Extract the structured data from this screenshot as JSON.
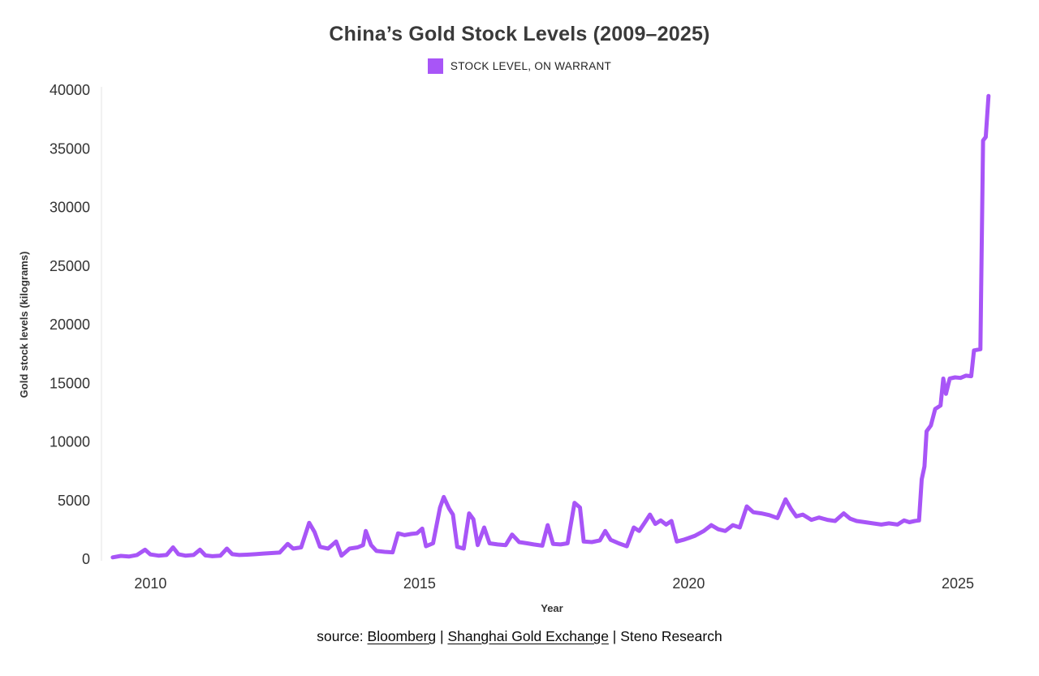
{
  "header": {
    "title": "China’s Gold Stock Levels (2009–2025)"
  },
  "legend": {
    "label": "STOCK LEVEL, ON WARRANT"
  },
  "source": {
    "prefix": "source: ",
    "link_bloomberg": "Bloomberg",
    "sep1": " | ",
    "link_sge": "Shanghai Gold Exchange",
    "sep2": " | ",
    "credit": "Steno Research"
  },
  "chart_data": {
    "type": "line",
    "title": "China’s Gold Stock Levels (2009–2025)",
    "xlabel": "Year",
    "ylabel": "Gold stock levels (kilograms)",
    "unit": "kilograms",
    "legend_position": "top",
    "grid": false,
    "color": "#a855f7",
    "xlim": [
      2009.09,
      2025.83
    ],
    "ylim": [
      0,
      40000
    ],
    "x_ticks": [
      2010,
      2015,
      2020,
      2025
    ],
    "y_ticks": [
      0,
      5000,
      10000,
      15000,
      20000,
      25000,
      30000,
      35000,
      40000
    ],
    "series": [
      {
        "name": "STOCK LEVEL, ON WARRANT",
        "points": [
          [
            2009.3,
            150
          ],
          [
            2009.45,
            280
          ],
          [
            2009.6,
            220
          ],
          [
            2009.75,
            350
          ],
          [
            2009.9,
            800
          ],
          [
            2010.0,
            400
          ],
          [
            2010.15,
            300
          ],
          [
            2010.3,
            350
          ],
          [
            2010.42,
            1000
          ],
          [
            2010.52,
            420
          ],
          [
            2010.65,
            300
          ],
          [
            2010.8,
            350
          ],
          [
            2010.92,
            800
          ],
          [
            2011.02,
            320
          ],
          [
            2011.15,
            250
          ],
          [
            2011.3,
            300
          ],
          [
            2011.42,
            900
          ],
          [
            2011.52,
            420
          ],
          [
            2011.65,
            350
          ],
          [
            2011.8,
            380
          ],
          [
            2011.95,
            420
          ],
          [
            2012.1,
            480
          ],
          [
            2012.25,
            520
          ],
          [
            2012.4,
            560
          ],
          [
            2012.55,
            1300
          ],
          [
            2012.65,
            900
          ],
          [
            2012.8,
            1000
          ],
          [
            2012.95,
            3100
          ],
          [
            2013.05,
            2300
          ],
          [
            2013.15,
            1050
          ],
          [
            2013.3,
            900
          ],
          [
            2013.45,
            1500
          ],
          [
            2013.55,
            300
          ],
          [
            2013.7,
            900
          ],
          [
            2013.85,
            1000
          ],
          [
            2013.95,
            1200
          ],
          [
            2014.0,
            2400
          ],
          [
            2014.1,
            1200
          ],
          [
            2014.2,
            700
          ],
          [
            2014.35,
            620
          ],
          [
            2014.5,
            580
          ],
          [
            2014.6,
            2200
          ],
          [
            2014.72,
            2050
          ],
          [
            2014.85,
            2150
          ],
          [
            2014.95,
            2200
          ],
          [
            2015.05,
            2600
          ],
          [
            2015.12,
            1100
          ],
          [
            2015.25,
            1350
          ],
          [
            2015.38,
            4400
          ],
          [
            2015.45,
            5300
          ],
          [
            2015.55,
            4300
          ],
          [
            2015.62,
            3800
          ],
          [
            2015.7,
            1050
          ],
          [
            2015.82,
            900
          ],
          [
            2015.92,
            3900
          ],
          [
            2016.0,
            3400
          ],
          [
            2016.08,
            1200
          ],
          [
            2016.2,
            2700
          ],
          [
            2016.3,
            1350
          ],
          [
            2016.45,
            1250
          ],
          [
            2016.6,
            1200
          ],
          [
            2016.72,
            2100
          ],
          [
            2016.85,
            1450
          ],
          [
            2017.0,
            1350
          ],
          [
            2017.12,
            1250
          ],
          [
            2017.28,
            1150
          ],
          [
            2017.38,
            2900
          ],
          [
            2017.48,
            1300
          ],
          [
            2017.62,
            1250
          ],
          [
            2017.75,
            1350
          ],
          [
            2017.88,
            4800
          ],
          [
            2017.98,
            4400
          ],
          [
            2018.05,
            1500
          ],
          [
            2018.2,
            1450
          ],
          [
            2018.35,
            1600
          ],
          [
            2018.45,
            2400
          ],
          [
            2018.55,
            1650
          ],
          [
            2018.7,
            1350
          ],
          [
            2018.85,
            1100
          ],
          [
            2018.98,
            2700
          ],
          [
            2019.08,
            2400
          ],
          [
            2019.18,
            3100
          ],
          [
            2019.28,
            3800
          ],
          [
            2019.38,
            3000
          ],
          [
            2019.48,
            3300
          ],
          [
            2019.58,
            2950
          ],
          [
            2019.68,
            3250
          ],
          [
            2019.78,
            1500
          ],
          [
            2019.9,
            1650
          ],
          [
            2020.0,
            1800
          ],
          [
            2020.12,
            2000
          ],
          [
            2020.28,
            2400
          ],
          [
            2020.42,
            2900
          ],
          [
            2020.55,
            2550
          ],
          [
            2020.68,
            2400
          ],
          [
            2020.82,
            2900
          ],
          [
            2020.95,
            2700
          ],
          [
            2021.08,
            4500
          ],
          [
            2021.2,
            4000
          ],
          [
            2021.35,
            3900
          ],
          [
            2021.5,
            3750
          ],
          [
            2021.65,
            3500
          ],
          [
            2021.8,
            5100
          ],
          [
            2021.9,
            4300
          ],
          [
            2022.0,
            3650
          ],
          [
            2022.12,
            3800
          ],
          [
            2022.28,
            3350
          ],
          [
            2022.42,
            3550
          ],
          [
            2022.58,
            3350
          ],
          [
            2022.72,
            3250
          ],
          [
            2022.88,
            3900
          ],
          [
            2023.0,
            3450
          ],
          [
            2023.12,
            3250
          ],
          [
            2023.28,
            3150
          ],
          [
            2023.42,
            3050
          ],
          [
            2023.58,
            2950
          ],
          [
            2023.72,
            3050
          ],
          [
            2023.88,
            2950
          ],
          [
            2024.0,
            3300
          ],
          [
            2024.1,
            3150
          ],
          [
            2024.2,
            3250
          ],
          [
            2024.28,
            3300
          ],
          [
            2024.33,
            6800
          ],
          [
            2024.38,
            7900
          ],
          [
            2024.42,
            10900
          ],
          [
            2024.5,
            11400
          ],
          [
            2024.58,
            12800
          ],
          [
            2024.68,
            13100
          ],
          [
            2024.73,
            15400
          ],
          [
            2024.78,
            14100
          ],
          [
            2024.85,
            15400
          ],
          [
            2024.95,
            15500
          ],
          [
            2025.05,
            15450
          ],
          [
            2025.15,
            15650
          ],
          [
            2025.25,
            15600
          ],
          [
            2025.3,
            17800
          ],
          [
            2025.42,
            17900
          ],
          [
            2025.47,
            35700
          ],
          [
            2025.52,
            36000
          ],
          [
            2025.57,
            39500
          ]
        ]
      }
    ]
  }
}
